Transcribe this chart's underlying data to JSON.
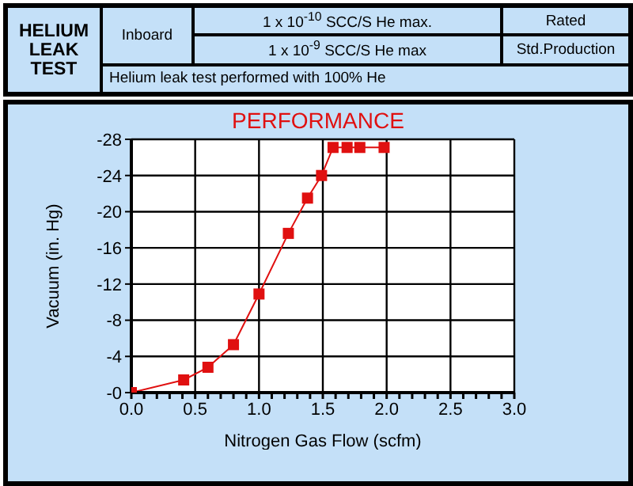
{
  "chart_data": {
    "type": "line",
    "title": "PERFORMANCE",
    "xlabel": "Nitrogen Gas Flow (scfm)",
    "ylabel": "Vacuum  (in. Hg)",
    "annotations": [
      "HELIUM LEAK TEST",
      "Inboard",
      "1 x 10$^{-10}$ SCC/S He max.",
      "Rated",
      "1 x 10$^{-9}$ SCC/S He max",
      "Std.Production",
      "Helium leak test performed with 100% He"
    ],
    "x": [
      0,
      0.41,
      0.6,
      0.8,
      1.0,
      1.23,
      1.38,
      1.49,
      1.58,
      1.69,
      1.79,
      1.98
    ],
    "series": [
      {
        "color": "#e01010",
        "values": [
          0,
          -1.4,
          -2.8,
          -5.3,
          -10.9,
          -17.6,
          -21.5,
          -24.0,
          -27.1,
          -27.1,
          -27.1,
          -27.1
        ]
      }
    ],
    "xlim": [
      0,
      3.0
    ],
    "xticks": [
      {
        "value": 0,
        "label": "0.0"
      },
      {
        "value": 0.1,
        "label": null
      },
      {
        "value": 0.2,
        "label": null
      },
      {
        "value": 0.3,
        "label": null
      },
      {
        "value": 0.4,
        "label": null
      },
      {
        "value": 0.5,
        "label": "0.5"
      },
      {
        "value": 0.6,
        "label": null
      },
      {
        "value": 0.7,
        "label": null
      },
      {
        "value": 0.8,
        "label": null
      },
      {
        "value": 0.9,
        "label": null
      },
      {
        "value": 1,
        "label": "1.0"
      },
      {
        "value": 1.1,
        "label": null
      },
      {
        "value": 1.2,
        "label": null
      },
      {
        "value": 1.3,
        "label": null
      },
      {
        "value": 1.4,
        "label": null
      },
      {
        "value": 1.5,
        "label": "1.5"
      },
      {
        "value": 1.6,
        "label": null
      },
      {
        "value": 1.7,
        "label": null
      },
      {
        "value": 1.8,
        "label": null
      },
      {
        "value": 1.9,
        "label": null
      },
      {
        "value": 2,
        "label": "2.0"
      },
      {
        "value": 2.1,
        "label": null
      },
      {
        "value": 2.2,
        "label": null
      },
      {
        "value": 2.3,
        "label": null
      },
      {
        "value": 2.4,
        "label": null
      },
      {
        "value": 2.5,
        "label": "2.5"
      },
      {
        "value": 2.6,
        "label": null
      },
      {
        "value": 2.7,
        "label": null
      },
      {
        "value": 2.8,
        "label": null
      },
      {
        "value": 2.9,
        "label": null
      },
      {
        "value": 3,
        "label": "3.0"
      }
    ],
    "ylim": [
      0,
      -28
    ],
    "yticks": [
      {
        "value": 0,
        "label": "-0"
      },
      -4,
      -8,
      -12,
      -16,
      -20,
      -24,
      -28
    ],
    "grid": true,
    "marker": "square",
    "line_style": "solid"
  }
}
